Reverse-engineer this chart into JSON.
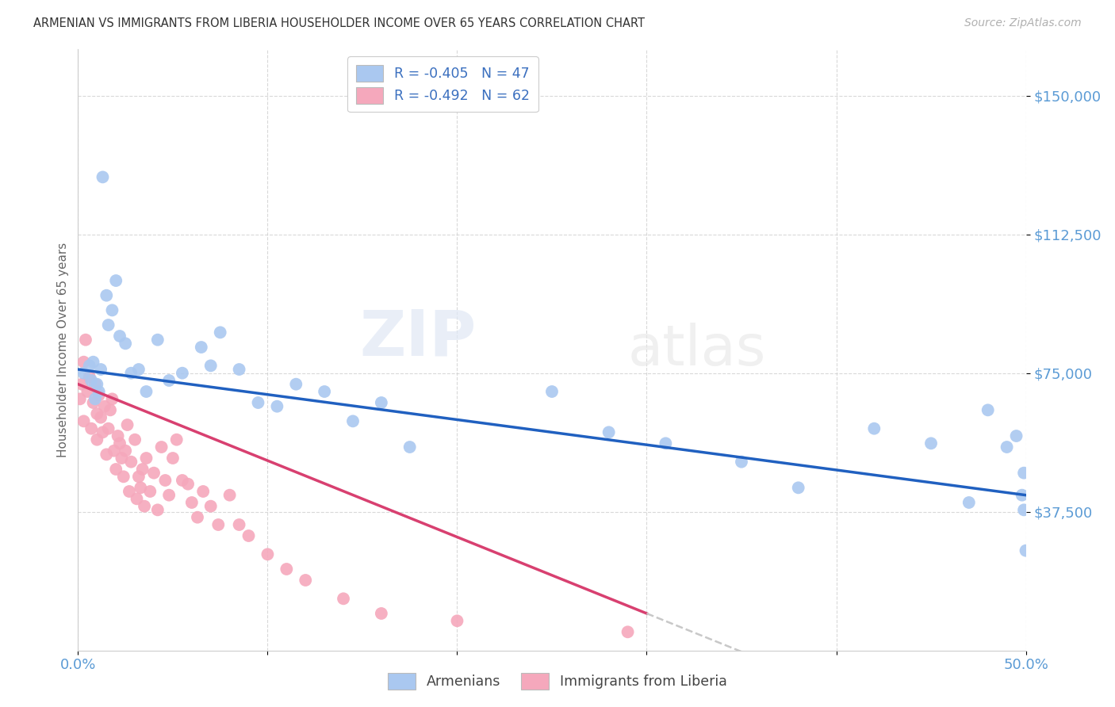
{
  "title": "ARMENIAN VS IMMIGRANTS FROM LIBERIA HOUSEHOLDER INCOME OVER 65 YEARS CORRELATION CHART",
  "source": "Source: ZipAtlas.com",
  "ylabel": "Householder Income Over 65 years",
  "xlim": [
    0.0,
    0.5
  ],
  "ylim": [
    0,
    162500
  ],
  "yticks": [
    37500,
    75000,
    112500,
    150000
  ],
  "ytick_labels": [
    "$37,500",
    "$75,000",
    "$112,500",
    "$150,000"
  ],
  "xtick_vals": [
    0.0,
    0.1,
    0.2,
    0.3,
    0.4,
    0.5
  ],
  "xtick_labels": [
    "0.0%",
    "",
    "",
    "",
    "",
    "50.0%"
  ],
  "legend1_label": "R = -0.405   N = 47",
  "legend2_label": "R = -0.492   N = 62",
  "bottom_legend": [
    "Armenians",
    "Immigrants from Liberia"
  ],
  "title_color": "#333333",
  "source_color": "#b0b0b0",
  "ytick_color": "#5b9bd5",
  "xtick_color": "#5b9bd5",
  "grid_color": "#d0d0d0",
  "armenian_color": "#aac8f0",
  "liberia_color": "#f5a8bc",
  "armenian_line_color": "#2060c0",
  "liberia_line_color": "#d84070",
  "liberia_line_dashed_color": "#c8c8c8",
  "watermark_text": "ZIPatlas",
  "watermark_color": "#e8e8e8",
  "arm_line_x0": 0.0,
  "arm_line_y0": 76000,
  "arm_line_x1": 0.5,
  "arm_line_y1": 42000,
  "lib_line_x0": 0.0,
  "lib_line_y0": 72000,
  "lib_line_x1": 0.3,
  "lib_line_y1": 10000,
  "lib_line_dashed_x1": 0.5,
  "armenians_x": [
    0.003,
    0.006,
    0.007,
    0.008,
    0.009,
    0.01,
    0.011,
    0.012,
    0.013,
    0.015,
    0.016,
    0.018,
    0.02,
    0.022,
    0.025,
    0.028,
    0.032,
    0.036,
    0.042,
    0.048,
    0.055,
    0.065,
    0.07,
    0.075,
    0.085,
    0.095,
    0.105,
    0.115,
    0.13,
    0.145,
    0.16,
    0.175,
    0.25,
    0.28,
    0.31,
    0.35,
    0.38,
    0.42,
    0.45,
    0.47,
    0.48,
    0.49,
    0.495,
    0.498,
    0.499,
    0.499,
    0.5
  ],
  "armenians_y": [
    75000,
    77000,
    73000,
    78000,
    68000,
    72000,
    70000,
    76000,
    128000,
    96000,
    88000,
    92000,
    100000,
    85000,
    83000,
    75000,
    76000,
    70000,
    84000,
    73000,
    75000,
    82000,
    77000,
    86000,
    76000,
    67000,
    66000,
    72000,
    70000,
    62000,
    67000,
    55000,
    70000,
    59000,
    56000,
    51000,
    44000,
    60000,
    56000,
    40000,
    65000,
    55000,
    58000,
    42000,
    48000,
    38000,
    27000
  ],
  "liberia_x": [
    0.001,
    0.002,
    0.003,
    0.003,
    0.004,
    0.005,
    0.006,
    0.007,
    0.008,
    0.009,
    0.01,
    0.01,
    0.011,
    0.012,
    0.013,
    0.014,
    0.015,
    0.016,
    0.017,
    0.018,
    0.019,
    0.02,
    0.021,
    0.022,
    0.023,
    0.024,
    0.025,
    0.026,
    0.027,
    0.028,
    0.03,
    0.031,
    0.032,
    0.033,
    0.034,
    0.035,
    0.036,
    0.038,
    0.04,
    0.042,
    0.044,
    0.046,
    0.048,
    0.05,
    0.052,
    0.055,
    0.058,
    0.06,
    0.063,
    0.066,
    0.07,
    0.074,
    0.08,
    0.085,
    0.09,
    0.1,
    0.11,
    0.12,
    0.14,
    0.16,
    0.2,
    0.29
  ],
  "liberia_y": [
    68000,
    72000,
    78000,
    62000,
    84000,
    70000,
    74000,
    60000,
    67000,
    72000,
    57000,
    64000,
    69000,
    63000,
    59000,
    66000,
    53000,
    60000,
    65000,
    68000,
    54000,
    49000,
    58000,
    56000,
    52000,
    47000,
    54000,
    61000,
    43000,
    51000,
    57000,
    41000,
    47000,
    44000,
    49000,
    39000,
    52000,
    43000,
    48000,
    38000,
    55000,
    46000,
    42000,
    52000,
    57000,
    46000,
    45000,
    40000,
    36000,
    43000,
    39000,
    34000,
    42000,
    34000,
    31000,
    26000,
    22000,
    19000,
    14000,
    10000,
    8000,
    5000
  ]
}
